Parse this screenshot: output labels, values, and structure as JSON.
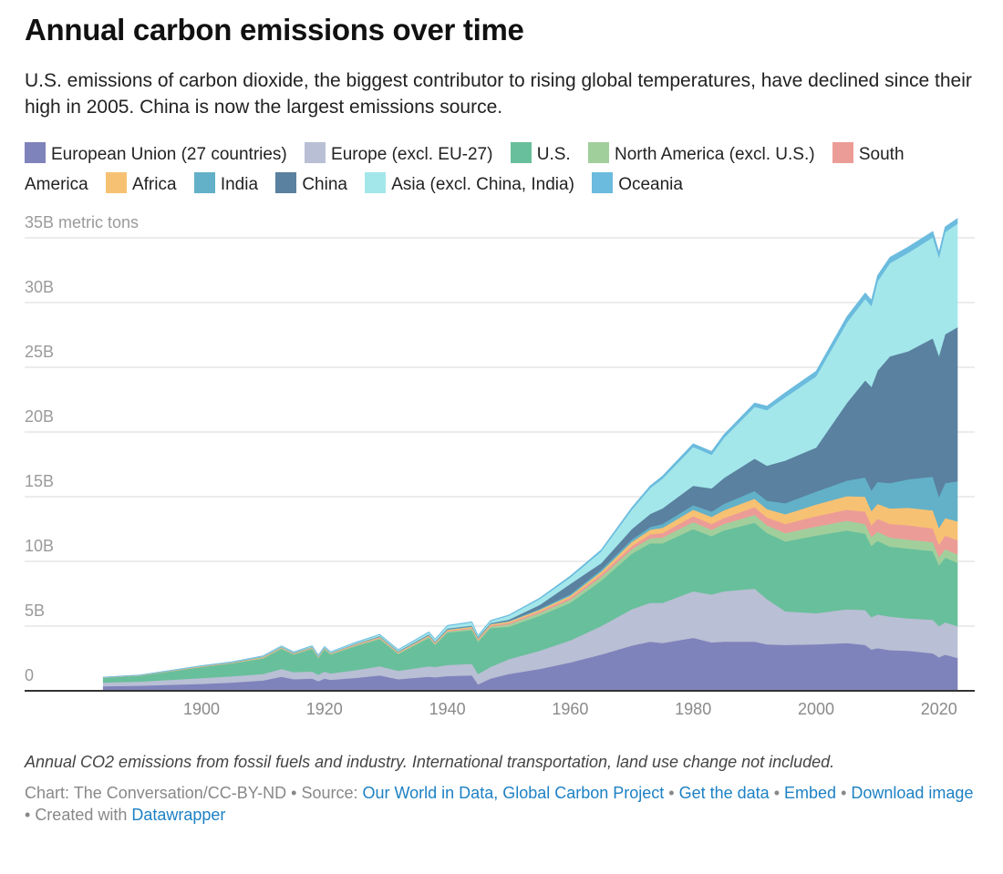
{
  "header": {
    "title": "Annual carbon emissions over time",
    "subtitle": "U.S. emissions of carbon dioxide, the biggest contributor to rising global temperatures, have declined since their high in 2005. China is now the largest emissions source."
  },
  "chart_data": {
    "type": "area",
    "stacked": true,
    "title": "Annual carbon emissions over time",
    "ylabel": "",
    "y_unit_label": "35B metric tons",
    "ylim": [
      0,
      36.5
    ],
    "xlim": [
      1884,
      2023
    ],
    "grid": true,
    "legend_placement": "top",
    "y_ticks": [
      {
        "value": 0,
        "label": "0"
      },
      {
        "value": 5,
        "label": "5B"
      },
      {
        "value": 10,
        "label": "10B"
      },
      {
        "value": 15,
        "label": "15B"
      },
      {
        "value": 20,
        "label": "20B"
      },
      {
        "value": 25,
        "label": "25B"
      },
      {
        "value": 30,
        "label": "30B"
      },
      {
        "value": 35,
        "label": "35B metric tons"
      }
    ],
    "x_ticks": [
      "1900",
      "1920",
      "1940",
      "1960",
      "1980",
      "2000",
      "2020"
    ],
    "x": [
      1884,
      1890,
      1900,
      1905,
      1910,
      1913,
      1915,
      1918,
      1919,
      1920,
      1921,
      1925,
      1929,
      1932,
      1937,
      1938,
      1940,
      1944,
      1945,
      1947,
      1950,
      1955,
      1960,
      1965,
      1970,
      1973,
      1975,
      1980,
      1983,
      1985,
      1990,
      1992,
      1995,
      2000,
      2005,
      2008,
      2009,
      2010,
      2012,
      2015,
      2019,
      2020,
      2021,
      2023
    ],
    "series": [
      {
        "name": "European Union (27 countries)",
        "color": "#7f83bb",
        "values": [
          0.35,
          0.4,
          0.54,
          0.65,
          0.8,
          1.1,
          0.9,
          0.95,
          0.75,
          0.95,
          0.85,
          1.0,
          1.2,
          0.9,
          1.1,
          1.05,
          1.15,
          1.2,
          0.5,
          0.95,
          1.3,
          1.7,
          2.2,
          2.8,
          3.5,
          3.8,
          3.7,
          4.1,
          3.75,
          3.8,
          3.8,
          3.6,
          3.55,
          3.6,
          3.7,
          3.55,
          3.2,
          3.3,
          3.15,
          3.1,
          2.9,
          2.6,
          2.8,
          2.55
        ]
      },
      {
        "name": "Europe (excl. EU-27)",
        "color": "#b9bfd4",
        "values": [
          0.3,
          0.32,
          0.45,
          0.48,
          0.5,
          0.6,
          0.55,
          0.55,
          0.5,
          0.55,
          0.5,
          0.6,
          0.7,
          0.65,
          0.8,
          0.8,
          0.85,
          0.9,
          0.8,
          0.9,
          1.15,
          1.4,
          1.7,
          2.2,
          2.8,
          3.0,
          3.1,
          3.6,
          3.7,
          3.9,
          4.1,
          3.5,
          2.6,
          2.4,
          2.6,
          2.7,
          2.5,
          2.6,
          2.6,
          2.5,
          2.6,
          2.4,
          2.5,
          2.45
        ]
      },
      {
        "name": "U.S.",
        "color": "#68bf9b",
        "values": [
          0.35,
          0.45,
          0.85,
          1.0,
          1.2,
          1.55,
          1.35,
          1.75,
          1.3,
          1.7,
          1.45,
          1.85,
          2.1,
          1.3,
          2.2,
          1.7,
          2.5,
          2.6,
          2.5,
          3.0,
          2.5,
          2.7,
          2.9,
          3.5,
          4.3,
          4.6,
          4.6,
          4.8,
          4.5,
          4.7,
          5.1,
          5.1,
          5.4,
          6.0,
          6.1,
          5.9,
          5.5,
          5.7,
          5.4,
          5.4,
          5.3,
          4.7,
          5.0,
          4.9
        ]
      },
      {
        "name": "North America (excl. U.S.)",
        "color": "#a1cf9c",
        "values": [
          0.01,
          0.01,
          0.02,
          0.03,
          0.05,
          0.06,
          0.05,
          0.06,
          0.05,
          0.06,
          0.05,
          0.06,
          0.07,
          0.06,
          0.08,
          0.08,
          0.09,
          0.1,
          0.1,
          0.12,
          0.2,
          0.22,
          0.25,
          0.3,
          0.35,
          0.4,
          0.45,
          0.55,
          0.5,
          0.5,
          0.6,
          0.6,
          0.65,
          0.7,
          0.75,
          0.75,
          0.7,
          0.7,
          0.7,
          0.7,
          0.7,
          0.65,
          0.65,
          0.65
        ]
      },
      {
        "name": "South America",
        "color": "#ec9c97",
        "values": [
          0.01,
          0.01,
          0.02,
          0.02,
          0.03,
          0.03,
          0.03,
          0.03,
          0.03,
          0.03,
          0.03,
          0.04,
          0.05,
          0.04,
          0.05,
          0.05,
          0.06,
          0.07,
          0.07,
          0.08,
          0.1,
          0.12,
          0.15,
          0.2,
          0.25,
          0.3,
          0.35,
          0.45,
          0.45,
          0.45,
          0.6,
          0.6,
          0.7,
          0.8,
          0.85,
          0.95,
          0.9,
          1.0,
          1.05,
          1.1,
          1.05,
          0.95,
          1.05,
          1.1
        ]
      },
      {
        "name": "Africa",
        "color": "#f7c173",
        "values": [
          0.01,
          0.01,
          0.02,
          0.02,
          0.03,
          0.03,
          0.03,
          0.03,
          0.03,
          0.03,
          0.03,
          0.04,
          0.05,
          0.05,
          0.06,
          0.06,
          0.07,
          0.08,
          0.08,
          0.09,
          0.1,
          0.12,
          0.15,
          0.2,
          0.3,
          0.35,
          0.4,
          0.5,
          0.55,
          0.6,
          0.65,
          0.65,
          0.75,
          0.9,
          1.05,
          1.15,
          1.1,
          1.15,
          1.2,
          1.35,
          1.4,
          1.3,
          1.35,
          1.45
        ]
      },
      {
        "name": "India",
        "color": "#62b1c8",
        "values": [
          0.01,
          0.01,
          0.02,
          0.02,
          0.03,
          0.03,
          0.03,
          0.03,
          0.03,
          0.03,
          0.03,
          0.03,
          0.04,
          0.04,
          0.04,
          0.04,
          0.05,
          0.05,
          0.05,
          0.05,
          0.06,
          0.08,
          0.12,
          0.16,
          0.2,
          0.22,
          0.3,
          0.35,
          0.4,
          0.5,
          0.6,
          0.65,
          0.85,
          1.0,
          1.2,
          1.5,
          1.6,
          1.7,
          1.95,
          2.2,
          2.6,
          2.4,
          2.7,
          3.1
        ]
      },
      {
        "name": "China",
        "color": "#5a819f",
        "values": [
          0,
          0,
          0,
          0,
          0.01,
          0.01,
          0.01,
          0.01,
          0.01,
          0.01,
          0.01,
          0.02,
          0.03,
          0.03,
          0.04,
          0.04,
          0.05,
          0.05,
          0.05,
          0.05,
          0.1,
          0.3,
          0.8,
          0.5,
          0.8,
          1.0,
          1.2,
          1.5,
          1.8,
          2.0,
          2.5,
          2.7,
          3.3,
          3.4,
          6.0,
          7.5,
          8.0,
          8.6,
          9.8,
          9.9,
          10.7,
          10.9,
          11.5,
          11.9
        ]
      },
      {
        "name": "Asia (excl. China, India)",
        "color": "#a3e7eb",
        "values": [
          0.01,
          0.01,
          0.02,
          0.02,
          0.04,
          0.05,
          0.05,
          0.06,
          0.05,
          0.06,
          0.06,
          0.08,
          0.1,
          0.1,
          0.15,
          0.15,
          0.2,
          0.25,
          0.1,
          0.15,
          0.3,
          0.45,
          0.5,
          0.9,
          1.5,
          2.0,
          2.3,
          3.0,
          2.6,
          3.1,
          4.0,
          4.3,
          4.9,
          5.5,
          6.2,
          6.3,
          6.25,
          6.9,
          7.2,
          7.6,
          7.8,
          7.6,
          7.9,
          8.0
        ]
      },
      {
        "name": "Oceania",
        "color": "#6bbbde",
        "values": [
          0.01,
          0.01,
          0.01,
          0.01,
          0.02,
          0.02,
          0.02,
          0.02,
          0.02,
          0.02,
          0.02,
          0.03,
          0.03,
          0.03,
          0.04,
          0.04,
          0.04,
          0.04,
          0.04,
          0.05,
          0.05,
          0.07,
          0.1,
          0.12,
          0.15,
          0.17,
          0.2,
          0.25,
          0.25,
          0.25,
          0.3,
          0.3,
          0.35,
          0.4,
          0.45,
          0.45,
          0.45,
          0.45,
          0.45,
          0.45,
          0.45,
          0.4,
          0.4,
          0.4
        ]
      }
    ],
    "note": "Annual CO2 emissions from fossil fuels and industry. International transportation, land use change not included."
  },
  "legend": {
    "items": [
      {
        "label": "European Union (27 countries)",
        "color": "#7f83bb"
      },
      {
        "label": "Europe (excl. EU-27)",
        "color": "#b9bfd4"
      },
      {
        "label": "U.S.",
        "color": "#68bf9b"
      },
      {
        "label": "North America (excl. U.S.)",
        "color": "#a1cf9c"
      },
      {
        "label": "South America",
        "color": "#ec9c97"
      },
      {
        "label": "Africa",
        "color": "#f7c173"
      },
      {
        "label": "India",
        "color": "#62b1c8"
      },
      {
        "label": "China",
        "color": "#5a819f"
      },
      {
        "label": "Asia (excl. China, India)",
        "color": "#a3e7eb"
      },
      {
        "label": "Oceania",
        "color": "#6bbbde"
      }
    ]
  },
  "footer": {
    "note": "Annual CO2 emissions from fossil fuels and industry. International transportation, land use change not included.",
    "chart_credit": "Chart: The Conversation/CC-BY-ND",
    "sep": " • ",
    "source_label": "Source: ",
    "source_link": "Our World in Data, Global Carbon Project",
    "get_data": "Get the data",
    "embed": "Embed",
    "download": "Download image",
    "created_with": "Created with ",
    "datawrapper": "Datawrapper",
    "link_color": "#1d81c4"
  }
}
